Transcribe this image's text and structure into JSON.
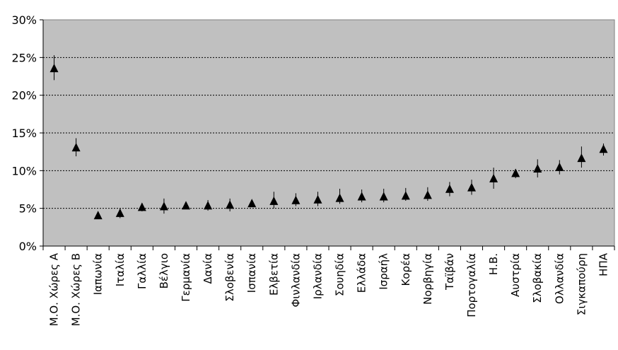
{
  "chart_data": {
    "type": "scatter",
    "marker": "triangle",
    "categories": [
      "Μ.Ο. Χώρες Α",
      "Μ.Ο. Χώρες Β",
      "Ιαπωνία",
      "Ιταλία",
      "Γαλλία",
      "Βέλγιο",
      "Γερμανία",
      "Δανία",
      "Σλοβενία",
      "Ισπανία",
      "Ελβετία",
      "Φινλανδία",
      "Ιρλανδία",
      "Σουηδία",
      "Ελλάδα",
      "Ισραήλ",
      "Κορέα",
      "Νορβηγία",
      "Ταϊβάν",
      "Πορτογαλία",
      "Η.Β.",
      "Αυστρία",
      "Σλοβακία",
      "Ολλανδία",
      "Σιγκαπούρη",
      "ΗΠΑ"
    ],
    "values": [
      23.5,
      13.0,
      4.0,
      4.3,
      5.1,
      5.2,
      5.3,
      5.3,
      5.4,
      5.6,
      5.9,
      6.0,
      6.1,
      6.3,
      6.5,
      6.5,
      6.6,
      6.7,
      7.5,
      7.7,
      8.9,
      9.6,
      10.2,
      10.4,
      11.6,
      12.8
    ],
    "error_low": [
      22.0,
      11.9,
      3.6,
      3.7,
      4.6,
      4.3,
      5.0,
      4.7,
      4.6,
      5.3,
      5.0,
      5.3,
      5.3,
      5.6,
      5.8,
      5.8,
      6.0,
      6.0,
      6.6,
      6.8,
      7.6,
      9.0,
      9.1,
      9.5,
      10.4,
      12.0
    ],
    "error_high": [
      25.3,
      14.3,
      4.5,
      5.0,
      5.7,
      6.3,
      5.8,
      6.1,
      6.3,
      6.0,
      7.2,
      7.0,
      7.2,
      7.6,
      7.5,
      7.6,
      7.7,
      7.8,
      8.5,
      8.8,
      10.4,
      10.2,
      11.5,
      11.4,
      13.2,
      13.6
    ],
    "y_tick_labels": [
      "0%",
      "5%",
      "10%",
      "15%",
      "20%",
      "25%",
      "30%"
    ],
    "ylim": [
      0,
      30
    ],
    "y_tick_step": 5,
    "grid": true,
    "grid_style": "dashed",
    "plot_background": "#c0c0c0",
    "marker_color": "#000000",
    "title": "",
    "xlabel": "",
    "ylabel": ""
  }
}
